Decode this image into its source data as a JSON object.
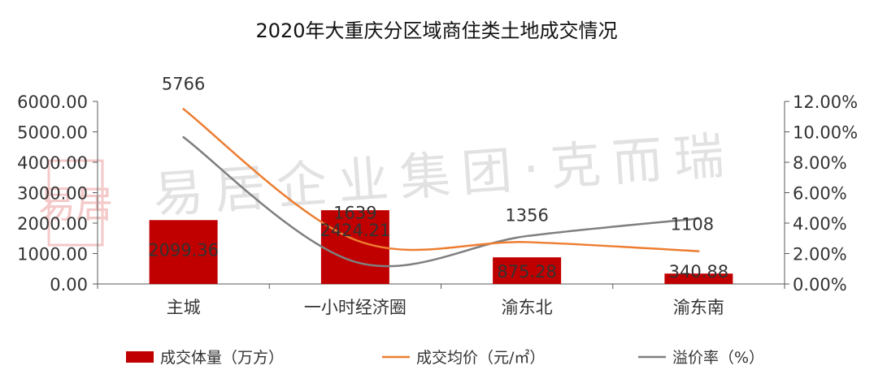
{
  "chart_data": {
    "type": "bar+line",
    "title": "2020年大重庆分区域商住类土地成交情况",
    "categories": [
      "主城",
      "一小时经济圈",
      "渝东北",
      "渝东南"
    ],
    "left_axis": {
      "min": 0,
      "max": 6000,
      "step": 1000,
      "ticks": [
        "0.00",
        "1000.00",
        "2000.00",
        "3000.00",
        "4000.00",
        "5000.00",
        "6000.00"
      ]
    },
    "right_axis": {
      "min": 0,
      "max": 0.12,
      "step": 0.02,
      "ticks": [
        "0.00%",
        "2.00%",
        "4.00%",
        "6.00%",
        "8.00%",
        "10.00%",
        "12.00%"
      ]
    },
    "series": [
      {
        "name": "成交体量（万方）",
        "type": "bar",
        "axis": "left",
        "color": "#c00000",
        "values": [
          2099.36,
          2424.21,
          875.28,
          340.88
        ],
        "labels": [
          "2099.36",
          "2424.21",
          "875.28",
          "340.88"
        ]
      },
      {
        "name": "成交均价（元/㎡）",
        "type": "line",
        "axis": "right",
        "color": "#ed7d31",
        "values": [
          5766,
          1639,
          1356,
          1108
        ],
        "plot_percent": [
          0.115,
          0.029,
          0.0275,
          0.0215
        ],
        "labels": [
          "5766",
          "1639",
          "1356",
          "1108"
        ]
      },
      {
        "name": "溢价率（%）",
        "type": "line",
        "axis": "right",
        "color": "#7f7f7f",
        "values": [
          0.0965,
          0.0145,
          0.0315,
          0.043
        ],
        "labels": []
      }
    ],
    "legend": {
      "position": "bottom"
    }
  },
  "watermark": {
    "text": "易居企业集团·克而瑞",
    "seal": "易居"
  }
}
